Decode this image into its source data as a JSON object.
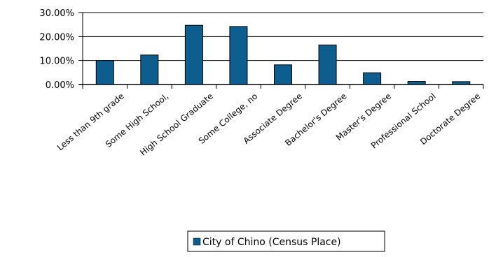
{
  "chart_data": {
    "type": "bar",
    "categories": [
      "Less than 9th grade",
      "Some High School,",
      "High School Graduate",
      "Some College, no",
      "Associate Degree",
      "Bachelor's Degree",
      "Master's Degree",
      "Professional School",
      "Doctorate Degree"
    ],
    "series": [
      {
        "name": "City of Chino (Census Place)",
        "values": [
          10.0,
          12.3,
          24.7,
          24.2,
          8.2,
          16.5,
          4.9,
          1.3,
          1.2
        ],
        "color": "#0e5d8f"
      }
    ],
    "yticks": [
      "0.00%",
      "10.00%",
      "20.00%",
      "30.00%"
    ],
    "ytick_values": [
      0,
      10,
      20,
      30
    ],
    "ylim": [
      0,
      30
    ],
    "title": "",
    "xlabel": "",
    "ylabel": "",
    "grid": true,
    "legend": "bottom-center"
  }
}
